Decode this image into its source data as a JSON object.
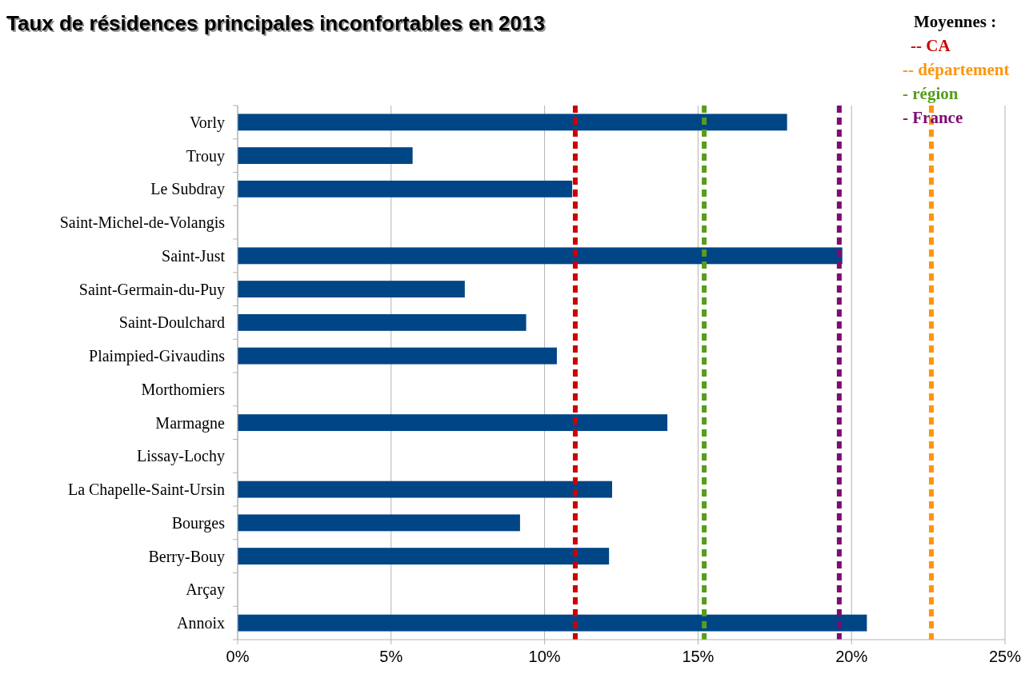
{
  "chart_data": {
    "type": "bar",
    "orientation": "horizontal",
    "title": "Taux de résidences principales inconfortables en 2013",
    "categories": [
      "Vorly",
      "Trouy",
      "Le Subdray",
      "Saint-Michel-de-Volangis",
      "Saint-Just",
      "Saint-Germain-du-Puy",
      "Saint-Doulchard",
      "Plaimpied-Givaudins",
      "Morthomiers",
      "Marmagne",
      "Lissay-Lochy",
      "La Chapelle-Saint-Ursin",
      "Bourges",
      "Berry-Bouy",
      "Arçay",
      "Annoix"
    ],
    "values": [
      17.9,
      5.7,
      10.9,
      null,
      19.7,
      7.4,
      9.4,
      10.4,
      null,
      14.0,
      null,
      12.2,
      9.2,
      12.1,
      null,
      20.5
    ],
    "color": "#004586",
    "xlim": [
      0,
      25
    ],
    "xticks": [
      {
        "value": 0,
        "label": "0%"
      },
      {
        "value": 5,
        "label": "5%"
      },
      {
        "value": 10,
        "label": "10%"
      },
      {
        "value": 15,
        "label": "15%"
      },
      {
        "value": 20,
        "label": "20%"
      },
      {
        "value": 25,
        "label": "25%"
      }
    ],
    "grid": "x",
    "legend_title": "Moyennes :",
    "ref_lines": [
      {
        "axis": "x",
        "value": 11.0,
        "label": "-- CA",
        "color": "#cc0000",
        "line_style": "dashed"
      },
      {
        "axis": "x",
        "value": 22.6,
        "label": "-- département",
        "color": "#ff950e",
        "line_style": "dashed"
      },
      {
        "axis": "x",
        "value": 15.2,
        "label": "- région",
        "color": "#579d1c",
        "line_style": "dashed"
      },
      {
        "axis": "x",
        "value": 19.6,
        "label": "- France",
        "color": "#7e0b73",
        "line_style": "dashed"
      }
    ]
  }
}
